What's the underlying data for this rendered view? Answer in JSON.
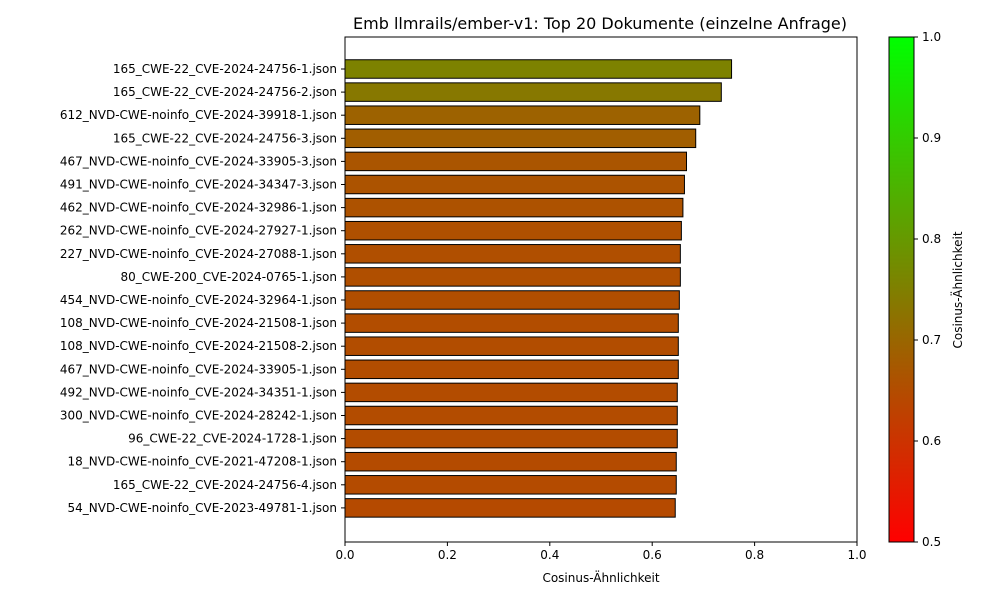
{
  "chart_data": {
    "type": "bar",
    "orientation": "horizontal",
    "title": "Emb llmrails/ember-v1: Top 20 Dokumente (einzelne Anfrage)",
    "xlabel": "Cosinus-Ähnlichkeit",
    "ylabel": "",
    "xlim": [
      0.0,
      1.0
    ],
    "xticks": [
      "0.0",
      "0.2",
      "0.4",
      "0.6",
      "0.8",
      "1.0"
    ],
    "grid": false,
    "categories": [
      "165_CWE-22_CVE-2024-24756-1.json",
      "165_CWE-22_CVE-2024-24756-2.json",
      "612_NVD-CWE-noinfo_CVE-2024-39918-1.json",
      "165_CWE-22_CVE-2024-24756-3.json",
      "467_NVD-CWE-noinfo_CVE-2024-33905-3.json",
      "491_NVD-CWE-noinfo_CVE-2024-34347-3.json",
      "462_NVD-CWE-noinfo_CVE-2024-32986-1.json",
      "262_NVD-CWE-noinfo_CVE-2024-27927-1.json",
      "227_NVD-CWE-noinfo_CVE-2024-27088-1.json",
      "80_CWE-200_CVE-2024-0765-1.json",
      "454_NVD-CWE-noinfo_CVE-2024-32964-1.json",
      "108_NVD-CWE-noinfo_CVE-2024-21508-1.json",
      "108_NVD-CWE-noinfo_CVE-2024-21508-2.json",
      "467_NVD-CWE-noinfo_CVE-2024-33905-1.json",
      "492_NVD-CWE-noinfo_CVE-2024-34351-1.json",
      "300_NVD-CWE-noinfo_CVE-2024-28242-1.json",
      "96_CWE-22_CVE-2024-1728-1.json",
      "18_NVD-CWE-noinfo_CVE-2021-47208-1.json",
      "165_CWE-22_CVE-2024-24756-4.json",
      "54_NVD-CWE-noinfo_CVE-2023-49781-1.json"
    ],
    "values": [
      0.755,
      0.735,
      0.693,
      0.685,
      0.667,
      0.663,
      0.66,
      0.657,
      0.655,
      0.655,
      0.653,
      0.651,
      0.651,
      0.651,
      0.649,
      0.649,
      0.649,
      0.647,
      0.647,
      0.645
    ],
    "colorbar": {
      "label": "Cosinus-Ähnlichkeit",
      "range": [
        0.5,
        1.0
      ],
      "ticks": [
        "0.5",
        "0.6",
        "0.7",
        "0.8",
        "0.9",
        "1.0"
      ],
      "color_low": "#ff0000",
      "color_high": "#00ff00"
    },
    "bar_edge_color": "#000000"
  }
}
